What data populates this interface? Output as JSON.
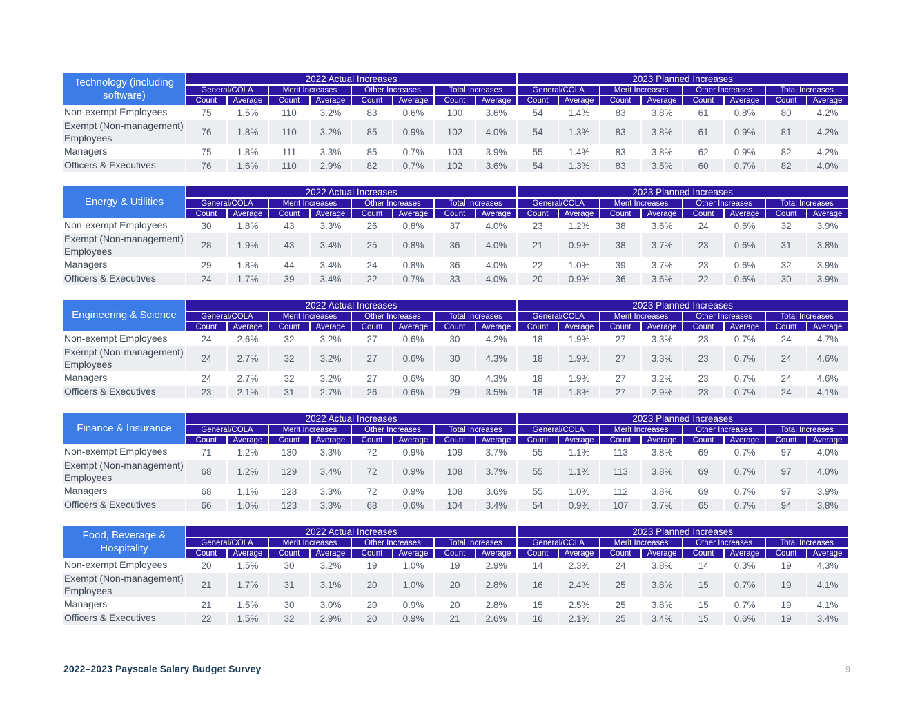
{
  "colors": {
    "industry_blue": "#3C7CE6",
    "banner_indigo": "#2F16A0",
    "stripe_gray": "#EBEDF0",
    "row_white": "#FFFFFF",
    "body_text": "#4D5662",
    "label_text": "#3A434F",
    "footer_text": "#1B3A55",
    "page_number_text": "#9AA2AB"
  },
  "labels": {
    "year_groups": [
      "2022 Actual Increases",
      "2023 Planned Increases"
    ],
    "subgroups": [
      "General/COLA",
      "Merit Increases",
      "Other Increases",
      "Total Increases"
    ],
    "measures": [
      "Count",
      "Average"
    ]
  },
  "tables": [
    {
      "industry": "Technology (including software)",
      "rows": [
        {
          "label": "Non-exempt Employees",
          "values": [
            "75",
            "1.5%",
            "110",
            "3.2%",
            "83",
            "0.6%",
            "100",
            "3.6%",
            "54",
            "1.4%",
            "83",
            "3.8%",
            "61",
            "0.8%",
            "80",
            "4.2%"
          ]
        },
        {
          "label": "Exempt (Non-management) Employees",
          "values": [
            "76",
            "1.8%",
            "110",
            "3.2%",
            "85",
            "0.9%",
            "102",
            "4.0%",
            "54",
            "1.3%",
            "83",
            "3.8%",
            "61",
            "0.9%",
            "81",
            "4.2%"
          ]
        },
        {
          "label": "Managers",
          "values": [
            "75",
            "1.8%",
            "111",
            "3.3%",
            "85",
            "0.7%",
            "103",
            "3.9%",
            "55",
            "1.4%",
            "83",
            "3.8%",
            "62",
            "0.9%",
            "82",
            "4.2%"
          ]
        },
        {
          "label": "Officers & Executives",
          "values": [
            "76",
            "1.6%",
            "110",
            "2.9%",
            "82",
            "0.7%",
            "102",
            "3.6%",
            "54",
            "1.3%",
            "83",
            "3.5%",
            "60",
            "0.7%",
            "82",
            "4.0%"
          ]
        }
      ]
    },
    {
      "industry": "Energy & Utilities",
      "rows": [
        {
          "label": "Non-exempt Employees",
          "values": [
            "30",
            "1.8%",
            "43",
            "3.3%",
            "26",
            "0.8%",
            "37",
            "4.0%",
            "23",
            "1.2%",
            "38",
            "3.6%",
            "24",
            "0.6%",
            "32",
            "3.9%"
          ]
        },
        {
          "label": "Exempt (Non-management) Employees",
          "values": [
            "28",
            "1.9%",
            "43",
            "3.4%",
            "25",
            "0.8%",
            "36",
            "4.0%",
            "21",
            "0.9%",
            "38",
            "3.7%",
            "23",
            "0.6%",
            "31",
            "3.8%"
          ]
        },
        {
          "label": "Managers",
          "values": [
            "29",
            "1.8%",
            "44",
            "3.4%",
            "24",
            "0.8%",
            "36",
            "4.0%",
            "22",
            "1.0%",
            "39",
            "3.7%",
            "23",
            "0.6%",
            "32",
            "3.9%"
          ]
        },
        {
          "label": "Officers & Executives",
          "values": [
            "24",
            "1.7%",
            "39",
            "3.4%",
            "22",
            "0.7%",
            "33",
            "4.0%",
            "20",
            "0.9%",
            "36",
            "3.6%",
            "22",
            "0.6%",
            "30",
            "3.9%"
          ]
        }
      ]
    },
    {
      "industry": "Engineering & Science",
      "rows": [
        {
          "label": "Non-exempt Employees",
          "values": [
            "24",
            "2.6%",
            "32",
            "3.2%",
            "27",
            "0.6%",
            "30",
            "4.2%",
            "18",
            "1.9%",
            "27",
            "3.3%",
            "23",
            "0.7%",
            "24",
            "4.7%"
          ]
        },
        {
          "label": "Exempt (Non-management) Employees",
          "values": [
            "24",
            "2.7%",
            "32",
            "3.2%",
            "27",
            "0.6%",
            "30",
            "4.3%",
            "18",
            "1.9%",
            "27",
            "3.3%",
            "23",
            "0.7%",
            "24",
            "4.6%"
          ]
        },
        {
          "label": "Managers",
          "values": [
            "24",
            "2.7%",
            "32",
            "3.2%",
            "27",
            "0.6%",
            "30",
            "4.3%",
            "18",
            "1.9%",
            "27",
            "3.2%",
            "23",
            "0.7%",
            "24",
            "4.6%"
          ]
        },
        {
          "label": "Officers & Executives",
          "values": [
            "23",
            "2.1%",
            "31",
            "2.7%",
            "26",
            "0.6%",
            "29",
            "3.5%",
            "18",
            "1.8%",
            "27",
            "2.9%",
            "23",
            "0.7%",
            "24",
            "4.1%"
          ]
        }
      ]
    },
    {
      "industry": "Finance & Insurance",
      "rows": [
        {
          "label": "Non-exempt Employees",
          "values": [
            "71",
            "1.2%",
            "130",
            "3.3%",
            "72",
            "0.9%",
            "109",
            "3.7%",
            "55",
            "1.1%",
            "113",
            "3.8%",
            "69",
            "0.7%",
            "97",
            "4.0%"
          ]
        },
        {
          "label": "Exempt (Non-management) Employees",
          "values": [
            "68",
            "1.2%",
            "129",
            "3.4%",
            "72",
            "0.9%",
            "108",
            "3.7%",
            "55",
            "1.1%",
            "113",
            "3.8%",
            "69",
            "0.7%",
            "97",
            "4.0%"
          ]
        },
        {
          "label": "Managers",
          "values": [
            "68",
            "1.1%",
            "128",
            "3.3%",
            "72",
            "0.9%",
            "108",
            "3.6%",
            "55",
            "1.0%",
            "112",
            "3.8%",
            "69",
            "0.7%",
            "97",
            "3.9%"
          ]
        },
        {
          "label": "Officers & Executives",
          "values": [
            "66",
            "1.0%",
            "123",
            "3.3%",
            "68",
            "0.6%",
            "104",
            "3.4%",
            "54",
            "0.9%",
            "107",
            "3.7%",
            "65",
            "0.7%",
            "94",
            "3.8%"
          ]
        }
      ]
    },
    {
      "industry": "Food, Beverage & Hospitality",
      "rows": [
        {
          "label": "Non-exempt Employees",
          "values": [
            "20",
            "1.5%",
            "30",
            "3.2%",
            "19",
            "1.0%",
            "19",
            "2.9%",
            "14",
            "2.3%",
            "24",
            "3.8%",
            "14",
            "0.3%",
            "19",
            "4.3%"
          ]
        },
        {
          "label": "Exempt (Non-management) Employees",
          "values": [
            "21",
            "1.7%",
            "31",
            "3.1%",
            "20",
            "1.0%",
            "20",
            "2.8%",
            "16",
            "2.4%",
            "25",
            "3.8%",
            "15",
            "0.7%",
            "19",
            "4.1%"
          ]
        },
        {
          "label": "Managers",
          "values": [
            "21",
            "1.5%",
            "30",
            "3.0%",
            "20",
            "0.9%",
            "20",
            "2.8%",
            "15",
            "2.5%",
            "25",
            "3.8%",
            "15",
            "0.7%",
            "19",
            "4.1%"
          ]
        },
        {
          "label": "Officers & Executives",
          "values": [
            "22",
            "1.5%",
            "32",
            "2.9%",
            "20",
            "0.9%",
            "21",
            "2.6%",
            "16",
            "2.1%",
            "25",
            "3.4%",
            "15",
            "0.6%",
            "19",
            "3.4%"
          ]
        }
      ]
    }
  ],
  "footer": {
    "title": "2022–2023 Payscale Salary Budget Survey",
    "page_number": "9"
  }
}
